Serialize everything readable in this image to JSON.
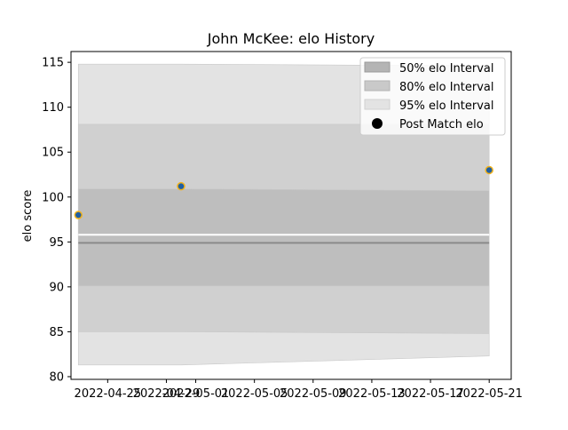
{
  "chart_data": {
    "type": "area",
    "title": "John McKee: elo History",
    "xlabel": "",
    "ylabel": "elo score",
    "xlim": [
      "2022-04-22T12:00",
      "2022-05-22T12:00"
    ],
    "ylim": [
      79.7,
      116.2
    ],
    "x_ticks": [
      "2022-04-25",
      "2022-04-29",
      "2022-05-01",
      "2022-05-05",
      "2022-05-09",
      "2022-05-13",
      "2022-05-17",
      "2022-05-21"
    ],
    "y_ticks": [
      80,
      85,
      90,
      95,
      100,
      105,
      110,
      115
    ],
    "legend_position": "top-right",
    "grid": false,
    "x": [
      "2022-04-23",
      "2022-04-30",
      "2022-05-21"
    ],
    "bands": [
      {
        "name": "95% elo Interval",
        "color": "#e3e3e3",
        "lower": [
          81.3,
          81.3,
          82.3
        ],
        "upper": [
          114.8,
          114.8,
          114.6
        ]
      },
      {
        "name": "80% elo Interval",
        "color": "#d0d0d0",
        "lower": [
          85.0,
          85.0,
          84.8
        ],
        "upper": [
          108.1,
          108.1,
          108.1
        ]
      },
      {
        "name": "50% elo Interval",
        "color": "#bebebe",
        "lower": [
          90.1,
          90.1,
          90.1
        ],
        "upper": [
          100.9,
          100.9,
          100.7
        ]
      }
    ],
    "mean_line": {
      "values": [
        94.9,
        94.9,
        94.9
      ],
      "color": "#8a8a8a"
    },
    "median_line": {
      "values": [
        95.8,
        95.8,
        95.8
      ],
      "color": "#ffffff"
    },
    "series": [
      {
        "name": "Post Match elo",
        "x": [
          "2022-04-23",
          "2022-04-30",
          "2022-05-21"
        ],
        "values": [
          98.0,
          101.2,
          103.0
        ],
        "fill": "#1f5fa3",
        "edge": "#f2b21b"
      }
    ]
  }
}
